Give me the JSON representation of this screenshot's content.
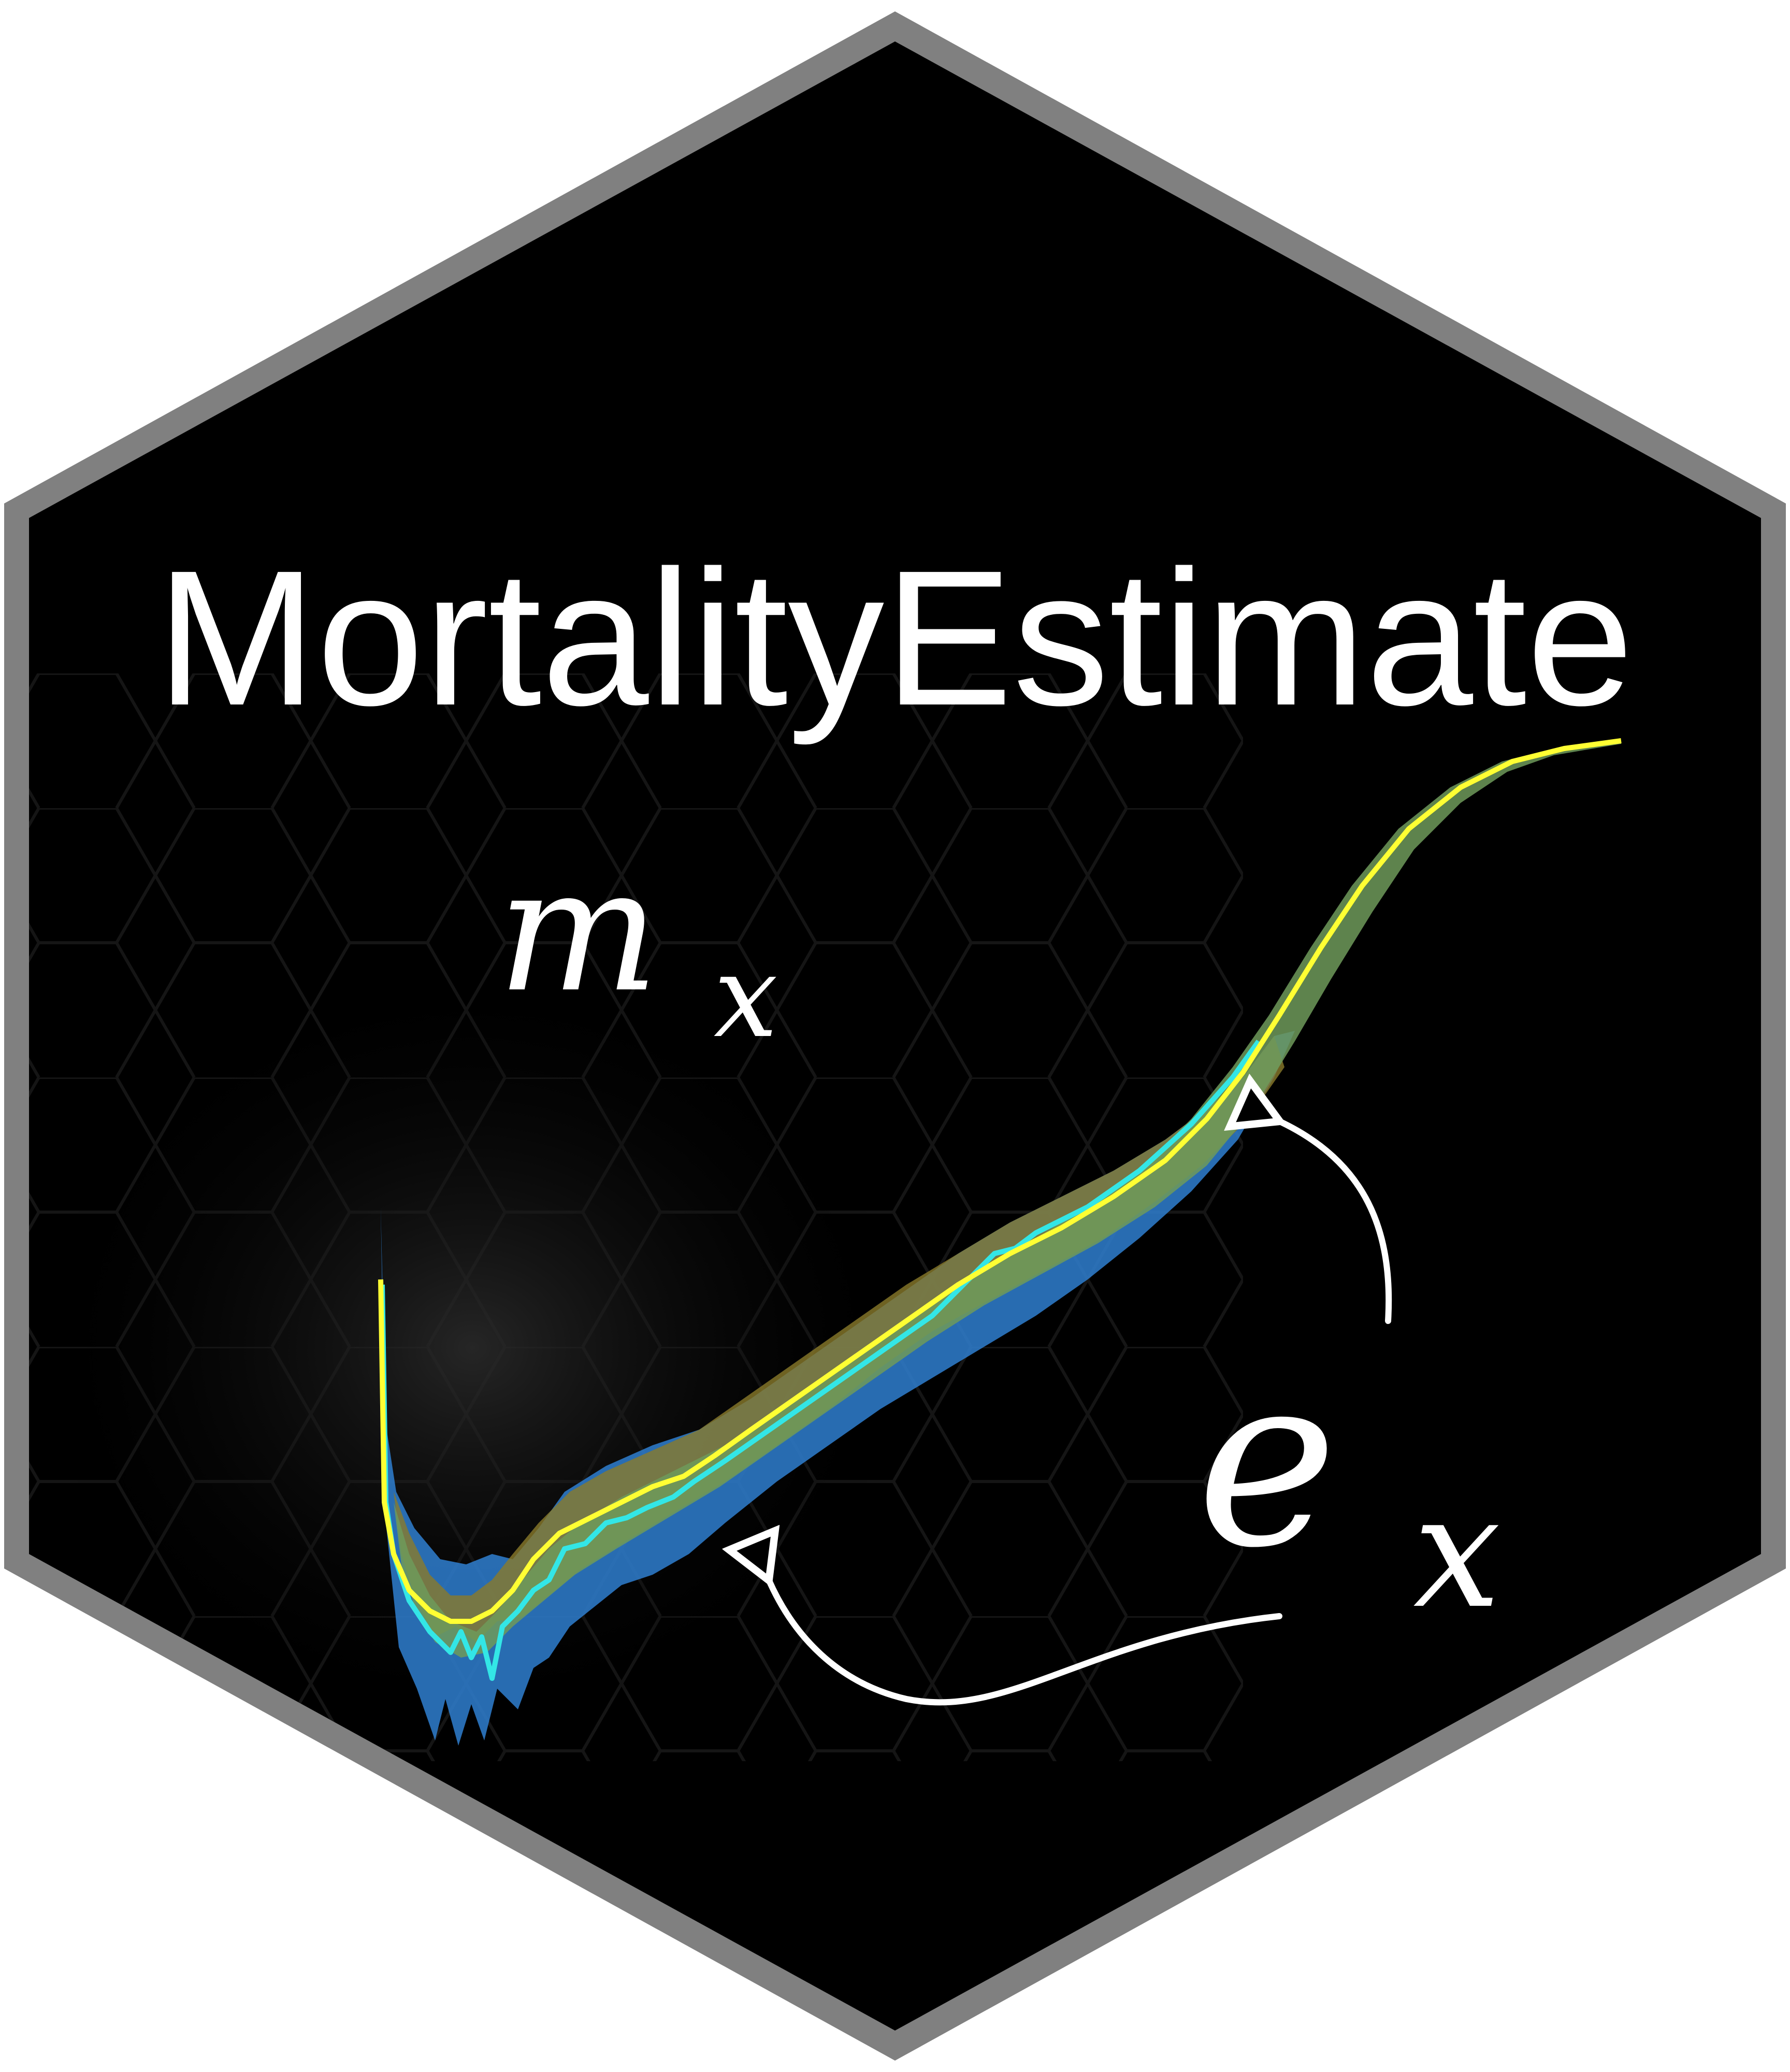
{
  "logo": {
    "title": "MortalityEstimate",
    "label_mx": {
      "base": "m",
      "sub": "x"
    },
    "label_ex": {
      "base": "e",
      "sub": "x"
    }
  },
  "colors": {
    "background": "#000000",
    "border": "#808080",
    "texture": "#1c1c1c",
    "line_main": "#ffff33",
    "line_secondary": "#33e6e6",
    "band_green": "#6f9a5a",
    "band_blue": "#2f7fd0",
    "band_olive": "#8a7a2a",
    "arrow": "#ffffff"
  },
  "icons": {
    "curve": "mortality-curve-graphic",
    "arrows": "hand-drawn-arrow"
  }
}
